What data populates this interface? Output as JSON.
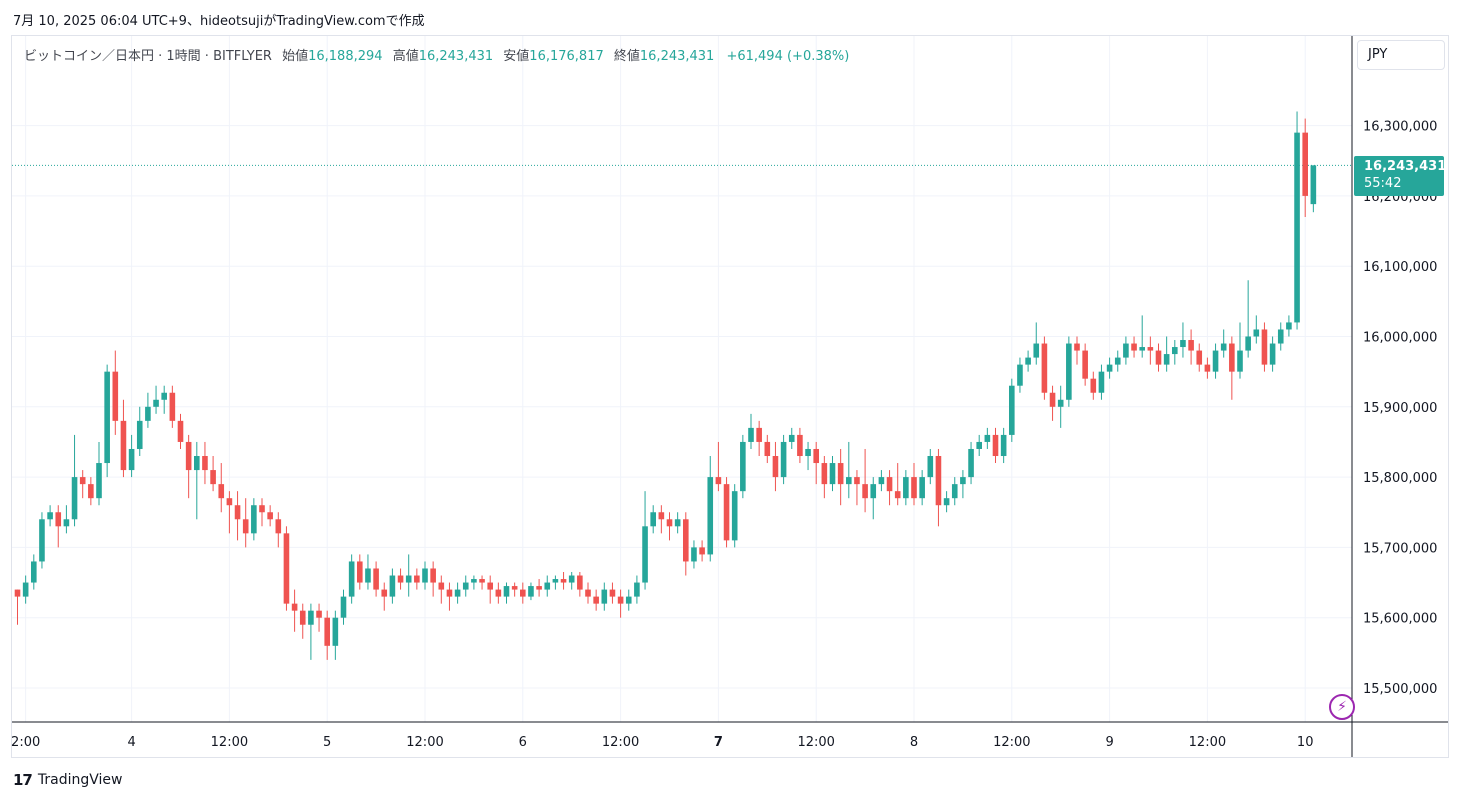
{
  "caption": "7月 10, 2025 06:04 UTC+9、hideotsujiがTradingView.comで作成",
  "legend": {
    "symbol": "ビットコイン／日本円 · 1時間 · BITFLYER",
    "open_label": "始値",
    "open": "16,188,294",
    "high_label": "高値",
    "high": "16,243,431",
    "low_label": "安値",
    "low": "16,176,817",
    "close_label": "終値",
    "close": "16,243,431",
    "change": "+61,494 (+0.38%)"
  },
  "currency_button": "JPY",
  "last_price": {
    "price": "16,243,431",
    "countdown": "55:42",
    "value": 16243431
  },
  "brand": "TradingView",
  "colors": {
    "up": "#26a69a",
    "down": "#ef5350",
    "grid": "#f0f3fa",
    "text": "#131722"
  },
  "chart_data": {
    "type": "candlestick",
    "ylim": [
      15450000,
      16350000
    ],
    "y_ticks": [
      15500000,
      15600000,
      15700000,
      15800000,
      15900000,
      16000000,
      16100000,
      16200000,
      16300000
    ],
    "y_tick_labels": [
      "15,500,000",
      "15,600,000",
      "15,700,000",
      "15,800,000",
      "15,900,000",
      "16,000,000",
      "16,100,000",
      "16,200,000",
      "16,300,000"
    ],
    "x_tick_labels": [
      {
        "label": "2:00",
        "bar": 1
      },
      {
        "label": "4",
        "bar": 14
      },
      {
        "label": "12:00",
        "bar": 26
      },
      {
        "label": "5",
        "bar": 38
      },
      {
        "label": "12:00",
        "bar": 50
      },
      {
        "label": "6",
        "bar": 62
      },
      {
        "label": "12:00",
        "bar": 74
      },
      {
        "label": "7",
        "bar": 86,
        "bold": true
      },
      {
        "label": "12:00",
        "bar": 98
      },
      {
        "label": "8",
        "bar": 110
      },
      {
        "label": "12:00",
        "bar": 122
      },
      {
        "label": "9",
        "bar": 134
      },
      {
        "label": "12:00",
        "bar": 146
      },
      {
        "label": "10",
        "bar": 158
      }
    ],
    "candles": [
      [
        15640000,
        15630000,
        15590000,
        15640000
      ],
      [
        15630000,
        15650000,
        15620000,
        15660000
      ],
      [
        15650000,
        15680000,
        15640000,
        15690000
      ],
      [
        15680000,
        15740000,
        15670000,
        15750000
      ],
      [
        15740000,
        15750000,
        15730000,
        15760000
      ],
      [
        15750000,
        15730000,
        15700000,
        15760000
      ],
      [
        15730000,
        15740000,
        15720000,
        15760000
      ],
      [
        15740000,
        15800000,
        15730000,
        15860000
      ],
      [
        15800000,
        15790000,
        15770000,
        15810000
      ],
      [
        15790000,
        15770000,
        15760000,
        15800000
      ],
      [
        15770000,
        15820000,
        15760000,
        15850000
      ],
      [
        15820000,
        15950000,
        15800000,
        15960000
      ],
      [
        15950000,
        15880000,
        15860000,
        15980000
      ],
      [
        15880000,
        15810000,
        15800000,
        15910000
      ],
      [
        15810000,
        15840000,
        15800000,
        15860000
      ],
      [
        15840000,
        15880000,
        15830000,
        15900000
      ],
      [
        15880000,
        15900000,
        15870000,
        15920000
      ],
      [
        15900000,
        15910000,
        15890000,
        15930000
      ],
      [
        15910000,
        15920000,
        15890000,
        15930000
      ],
      [
        15920000,
        15880000,
        15870000,
        15930000
      ],
      [
        15880000,
        15850000,
        15840000,
        15890000
      ],
      [
        15850000,
        15810000,
        15770000,
        15860000
      ],
      [
        15810000,
        15830000,
        15740000,
        15850000
      ],
      [
        15830000,
        15810000,
        15790000,
        15850000
      ],
      [
        15810000,
        15790000,
        15780000,
        15830000
      ],
      [
        15790000,
        15770000,
        15750000,
        15820000
      ],
      [
        15770000,
        15760000,
        15720000,
        15780000
      ],
      [
        15760000,
        15740000,
        15710000,
        15780000
      ],
      [
        15740000,
        15720000,
        15700000,
        15770000
      ],
      [
        15720000,
        15760000,
        15710000,
        15770000
      ],
      [
        15760000,
        15750000,
        15730000,
        15770000
      ],
      [
        15750000,
        15740000,
        15730000,
        15760000
      ],
      [
        15740000,
        15720000,
        15700000,
        15750000
      ],
      [
        15720000,
        15620000,
        15610000,
        15730000
      ],
      [
        15620000,
        15610000,
        15580000,
        15640000
      ],
      [
        15610000,
        15590000,
        15570000,
        15620000
      ],
      [
        15590000,
        15610000,
        15540000,
        15620000
      ],
      [
        15610000,
        15600000,
        15580000,
        15620000
      ],
      [
        15600000,
        15560000,
        15540000,
        15610000
      ],
      [
        15560000,
        15600000,
        15540000,
        15610000
      ],
      [
        15600000,
        15630000,
        15590000,
        15640000
      ],
      [
        15630000,
        15680000,
        15620000,
        15690000
      ],
      [
        15680000,
        15650000,
        15640000,
        15690000
      ],
      [
        15650000,
        15670000,
        15640000,
        15690000
      ],
      [
        15670000,
        15640000,
        15630000,
        15680000
      ],
      [
        15640000,
        15630000,
        15610000,
        15650000
      ],
      [
        15630000,
        15660000,
        15620000,
        15670000
      ],
      [
        15660000,
        15650000,
        15640000,
        15670000
      ],
      [
        15650000,
        15660000,
        15630000,
        15690000
      ],
      [
        15660000,
        15650000,
        15640000,
        15670000
      ],
      [
        15650000,
        15670000,
        15640000,
        15680000
      ],
      [
        15670000,
        15650000,
        15630000,
        15680000
      ],
      [
        15650000,
        15640000,
        15620000,
        15660000
      ],
      [
        15640000,
        15630000,
        15610000,
        15650000
      ],
      [
        15630000,
        15640000,
        15620000,
        15650000
      ],
      [
        15640000,
        15650000,
        15630000,
        15660000
      ],
      [
        15650000,
        15655000,
        15640000,
        15660000
      ],
      [
        15655000,
        15650000,
        15640000,
        15660000
      ],
      [
        15650000,
        15640000,
        15620000,
        15660000
      ],
      [
        15640000,
        15630000,
        15620000,
        15650000
      ],
      [
        15630000,
        15645000,
        15620000,
        15650000
      ],
      [
        15645000,
        15640000,
        15630000,
        15650000
      ],
      [
        15640000,
        15630000,
        15620000,
        15650000
      ],
      [
        15630000,
        15645000,
        15625000,
        15650000
      ],
      [
        15645000,
        15640000,
        15630000,
        15655000
      ],
      [
        15640000,
        15650000,
        15630000,
        15660000
      ],
      [
        15650000,
        15655000,
        15640000,
        15660000
      ],
      [
        15655000,
        15650000,
        15640000,
        15665000
      ],
      [
        15650000,
        15660000,
        15640000,
        15665000
      ],
      [
        15660000,
        15640000,
        15630000,
        15665000
      ],
      [
        15640000,
        15630000,
        15620000,
        15650000
      ],
      [
        15630000,
        15620000,
        15610000,
        15640000
      ],
      [
        15620000,
        15640000,
        15610000,
        15650000
      ],
      [
        15640000,
        15630000,
        15620000,
        15650000
      ],
      [
        15630000,
        15620000,
        15600000,
        15640000
      ],
      [
        15620000,
        15630000,
        15610000,
        15640000
      ],
      [
        15630000,
        15650000,
        15620000,
        15660000
      ],
      [
        15650000,
        15730000,
        15640000,
        15780000
      ],
      [
        15730000,
        15750000,
        15720000,
        15760000
      ],
      [
        15750000,
        15740000,
        15720000,
        15760000
      ],
      [
        15740000,
        15730000,
        15710000,
        15750000
      ],
      [
        15730000,
        15740000,
        15720000,
        15750000
      ],
      [
        15740000,
        15680000,
        15660000,
        15750000
      ],
      [
        15680000,
        15700000,
        15670000,
        15710000
      ],
      [
        15700000,
        15690000,
        15680000,
        15710000
      ],
      [
        15690000,
        15800000,
        15680000,
        15830000
      ],
      [
        15800000,
        15790000,
        15780000,
        15850000
      ],
      [
        15790000,
        15710000,
        15700000,
        15800000
      ],
      [
        15710000,
        15780000,
        15700000,
        15790000
      ],
      [
        15780000,
        15850000,
        15770000,
        15860000
      ],
      [
        15850000,
        15870000,
        15840000,
        15890000
      ],
      [
        15870000,
        15850000,
        15830000,
        15880000
      ],
      [
        15850000,
        15830000,
        15820000,
        15860000
      ],
      [
        15830000,
        15800000,
        15780000,
        15850000
      ],
      [
        15800000,
        15850000,
        15790000,
        15860000
      ],
      [
        15850000,
        15860000,
        15840000,
        15870000
      ],
      [
        15860000,
        15830000,
        15820000,
        15870000
      ],
      [
        15830000,
        15840000,
        15810000,
        15850000
      ],
      [
        15840000,
        15820000,
        15790000,
        15850000
      ],
      [
        15820000,
        15790000,
        15770000,
        15830000
      ],
      [
        15790000,
        15820000,
        15780000,
        15830000
      ],
      [
        15820000,
        15790000,
        15760000,
        15840000
      ],
      [
        15790000,
        15800000,
        15770000,
        15850000
      ],
      [
        15800000,
        15790000,
        15760000,
        15810000
      ],
      [
        15790000,
        15770000,
        15750000,
        15840000
      ],
      [
        15770000,
        15790000,
        15740000,
        15800000
      ],
      [
        15790000,
        15800000,
        15780000,
        15810000
      ],
      [
        15800000,
        15780000,
        15760000,
        15810000
      ],
      [
        15780000,
        15770000,
        15760000,
        15820000
      ],
      [
        15770000,
        15800000,
        15760000,
        15810000
      ],
      [
        15800000,
        15770000,
        15760000,
        15820000
      ],
      [
        15770000,
        15800000,
        15760000,
        15810000
      ],
      [
        15800000,
        15830000,
        15790000,
        15840000
      ],
      [
        15830000,
        15760000,
        15730000,
        15840000
      ],
      [
        15760000,
        15770000,
        15750000,
        15780000
      ],
      [
        15770000,
        15790000,
        15760000,
        15800000
      ],
      [
        15790000,
        15800000,
        15770000,
        15810000
      ],
      [
        15800000,
        15840000,
        15790000,
        15850000
      ],
      [
        15840000,
        15850000,
        15830000,
        15860000
      ],
      [
        15850000,
        15860000,
        15840000,
        15870000
      ],
      [
        15860000,
        15830000,
        15820000,
        15870000
      ],
      [
        15830000,
        15860000,
        15820000,
        15870000
      ],
      [
        15860000,
        15930000,
        15850000,
        15940000
      ],
      [
        15930000,
        15960000,
        15920000,
        15970000
      ],
      [
        15960000,
        15970000,
        15950000,
        15980000
      ],
      [
        15970000,
        15990000,
        15960000,
        16020000
      ],
      [
        15990000,
        15920000,
        15910000,
        16000000
      ],
      [
        15920000,
        15900000,
        15880000,
        15930000
      ],
      [
        15900000,
        15910000,
        15870000,
        15930000
      ],
      [
        15910000,
        15990000,
        15900000,
        16000000
      ],
      [
        15990000,
        15980000,
        15960000,
        16000000
      ],
      [
        15980000,
        15940000,
        15930000,
        15990000
      ],
      [
        15940000,
        15920000,
        15910000,
        15950000
      ],
      [
        15920000,
        15950000,
        15910000,
        15960000
      ],
      [
        15950000,
        15960000,
        15940000,
        15970000
      ],
      [
        15960000,
        15970000,
        15950000,
        15980000
      ],
      [
        15970000,
        15990000,
        15960000,
        16000000
      ],
      [
        15990000,
        15980000,
        15970000,
        16000000
      ],
      [
        15980000,
        15985000,
        15970000,
        16030000
      ],
      [
        15985000,
        15980000,
        15960000,
        16000000
      ],
      [
        15980000,
        15960000,
        15950000,
        15990000
      ],
      [
        15960000,
        15975000,
        15950000,
        16000000
      ],
      [
        15975000,
        15985000,
        15960000,
        15995000
      ],
      [
        15985000,
        15995000,
        15970000,
        16020000
      ],
      [
        15995000,
        15980000,
        15960000,
        16010000
      ],
      [
        15980000,
        15960000,
        15950000,
        15990000
      ],
      [
        15960000,
        15950000,
        15940000,
        15970000
      ],
      [
        15950000,
        15980000,
        15940000,
        15990000
      ],
      [
        15980000,
        15990000,
        15970000,
        16010000
      ],
      [
        15990000,
        15950000,
        15910000,
        16000000
      ],
      [
        15950000,
        15980000,
        15940000,
        16020000
      ],
      [
        15980000,
        16000000,
        15970000,
        16080000
      ],
      [
        16000000,
        16010000,
        15990000,
        16030000
      ],
      [
        16010000,
        15960000,
        15950000,
        16020000
      ],
      [
        15960000,
        15990000,
        15950000,
        16000000
      ],
      [
        15990000,
        16010000,
        15980000,
        16020000
      ],
      [
        16010000,
        16020000,
        16000000,
        16030000
      ],
      [
        16020000,
        16290000,
        16010000,
        16320000
      ],
      [
        16290000,
        16200000,
        16170000,
        16310000
      ],
      [
        16188294,
        16243431,
        16176817,
        16243431
      ]
    ]
  }
}
